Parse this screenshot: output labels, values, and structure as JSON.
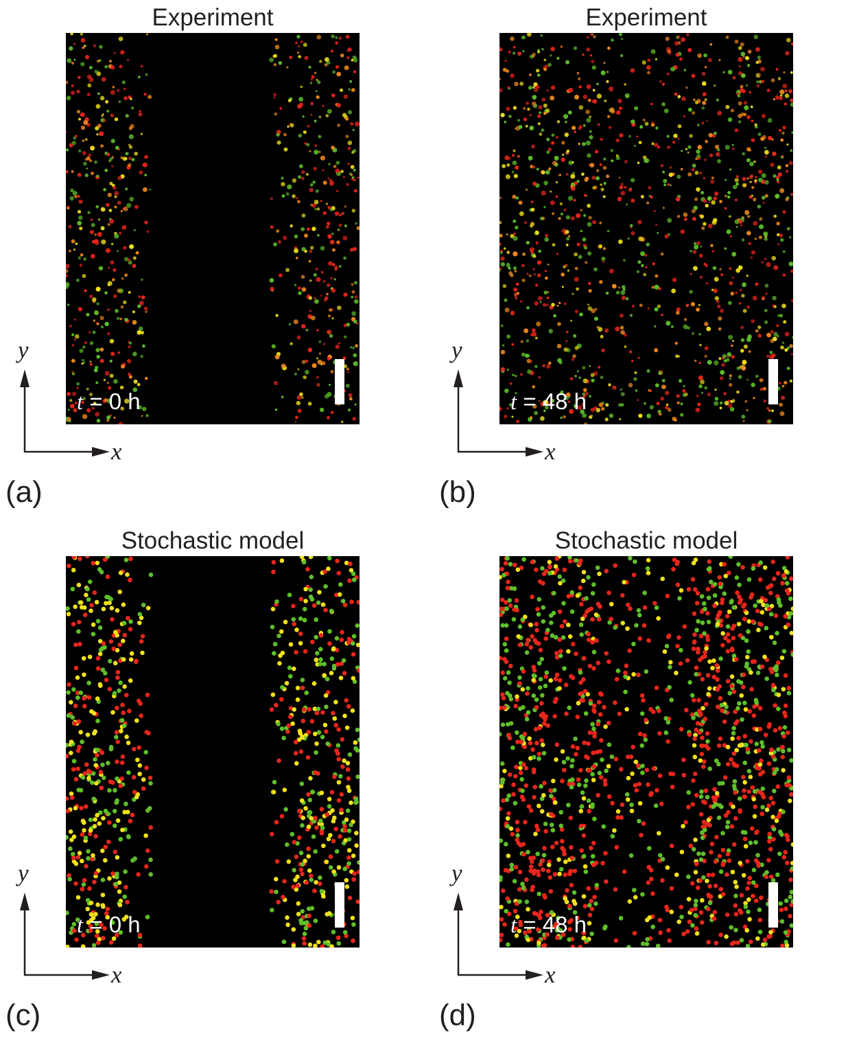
{
  "panels": [
    {
      "id": "a",
      "title": "Experiment",
      "label": "(a)",
      "time_var": "t",
      "time_value": "= 0 h",
      "kind": "experiment",
      "gap": [
        0.29,
        0.7
      ],
      "density": 0.55
    },
    {
      "id": "b",
      "title": "Experiment",
      "label": "(b)",
      "time_var": "t",
      "time_value": "= 48 h",
      "kind": "experiment",
      "gap": null,
      "density": 0.9
    },
    {
      "id": "c",
      "title": "Stochastic model",
      "label": "(c)",
      "time_var": "t",
      "time_value": "= 0 h",
      "kind": "model",
      "gap": [
        0.29,
        0.7
      ],
      "density": 0.55
    },
    {
      "id": "d",
      "title": "Stochastic model",
      "label": "(d)",
      "time_var": "t",
      "time_value": "= 48 h",
      "kind": "model",
      "gap": null,
      "density": 1.0
    }
  ],
  "axes": {
    "x_label": "x",
    "y_label": "y"
  },
  "colors": {
    "background": "#000000",
    "red": "#e8261c",
    "green": "#5fbf2a",
    "yellow": "#f2e21b",
    "orange": "#f08a1e",
    "text": "#231f20"
  }
}
